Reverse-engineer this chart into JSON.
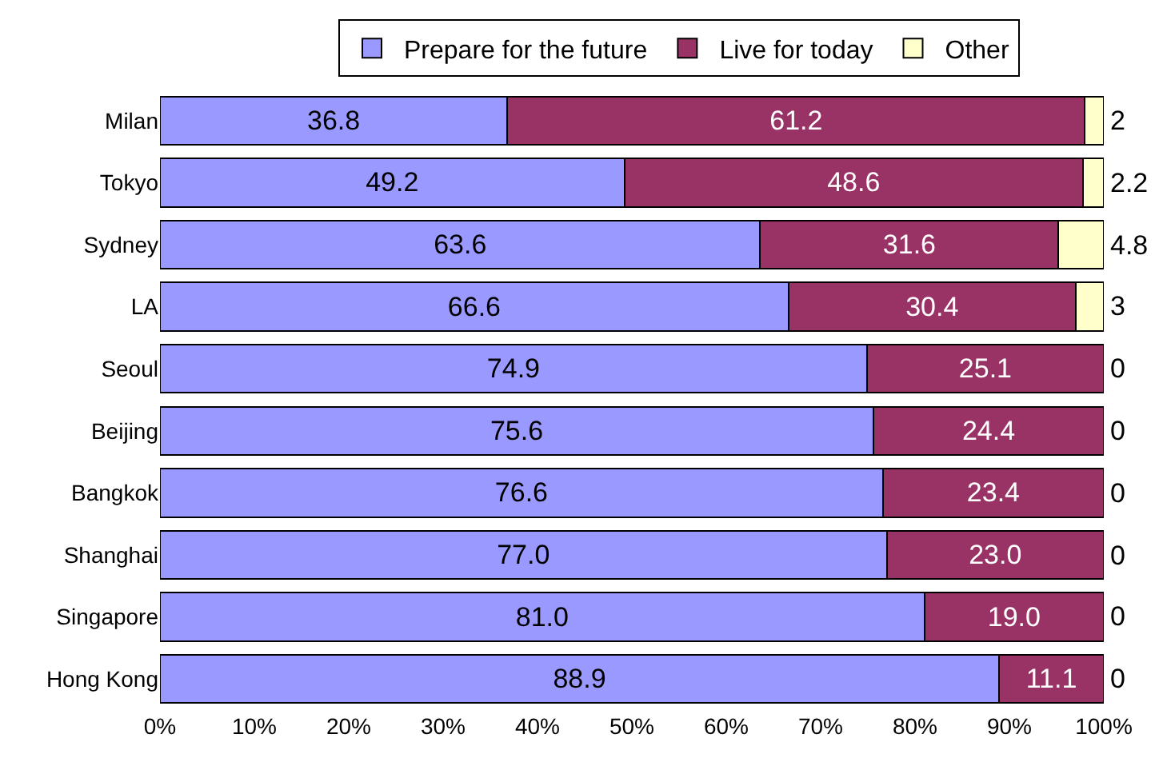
{
  "chart_data": {
    "type": "bar",
    "orientation": "horizontal",
    "stacked": true,
    "categories": [
      "Milan",
      "Tokyo",
      "Sydney",
      "LA",
      "Seoul",
      "Beijing",
      "Bangkok",
      "Shanghai",
      "Singapore",
      "Hong Kong"
    ],
    "series": [
      {
        "name": "Prepare for the future",
        "color": "#9999ff",
        "values": [
          36.8,
          49.2,
          63.6,
          66.6,
          74.9,
          75.6,
          76.6,
          77.0,
          81.0,
          88.9
        ],
        "value_labels": [
          "36.8",
          "49.2",
          "63.6",
          "66.6",
          "74.9",
          "75.6",
          "76.6",
          "77.0",
          "81.0",
          "88.9"
        ]
      },
      {
        "name": "Live for today",
        "color": "#993366",
        "values": [
          61.2,
          48.6,
          31.6,
          30.4,
          25.1,
          24.4,
          23.4,
          23.0,
          19.0,
          11.1
        ],
        "value_labels": [
          "61.2",
          "48.6",
          "31.6",
          "30.4",
          "25.1",
          "24.4",
          "23.4",
          "23.0",
          "19.0",
          "11.1"
        ]
      },
      {
        "name": "Other",
        "color": "#ffffcc",
        "values": [
          2,
          2.2,
          4.8,
          3,
          0,
          0,
          0,
          0,
          0,
          0
        ],
        "value_labels": [
          "2",
          "2.2",
          "4.8",
          "3",
          "0",
          "0",
          "0",
          "0",
          "0",
          "0"
        ]
      }
    ],
    "xlim": [
      0,
      100
    ],
    "xticks": [
      {
        "value": 0,
        "label": "0%"
      },
      {
        "value": 10,
        "label": "10%"
      },
      {
        "value": 20,
        "label": "20%"
      },
      {
        "value": 30,
        "label": "30%"
      },
      {
        "value": 40,
        "label": "40%"
      },
      {
        "value": 50,
        "label": "50%"
      },
      {
        "value": 60,
        "label": "60%"
      },
      {
        "value": 70,
        "label": "70%"
      },
      {
        "value": 80,
        "label": "80%"
      },
      {
        "value": 90,
        "label": "90%"
      },
      {
        "value": 100,
        "label": "100%"
      }
    ],
    "legend": "top"
  }
}
